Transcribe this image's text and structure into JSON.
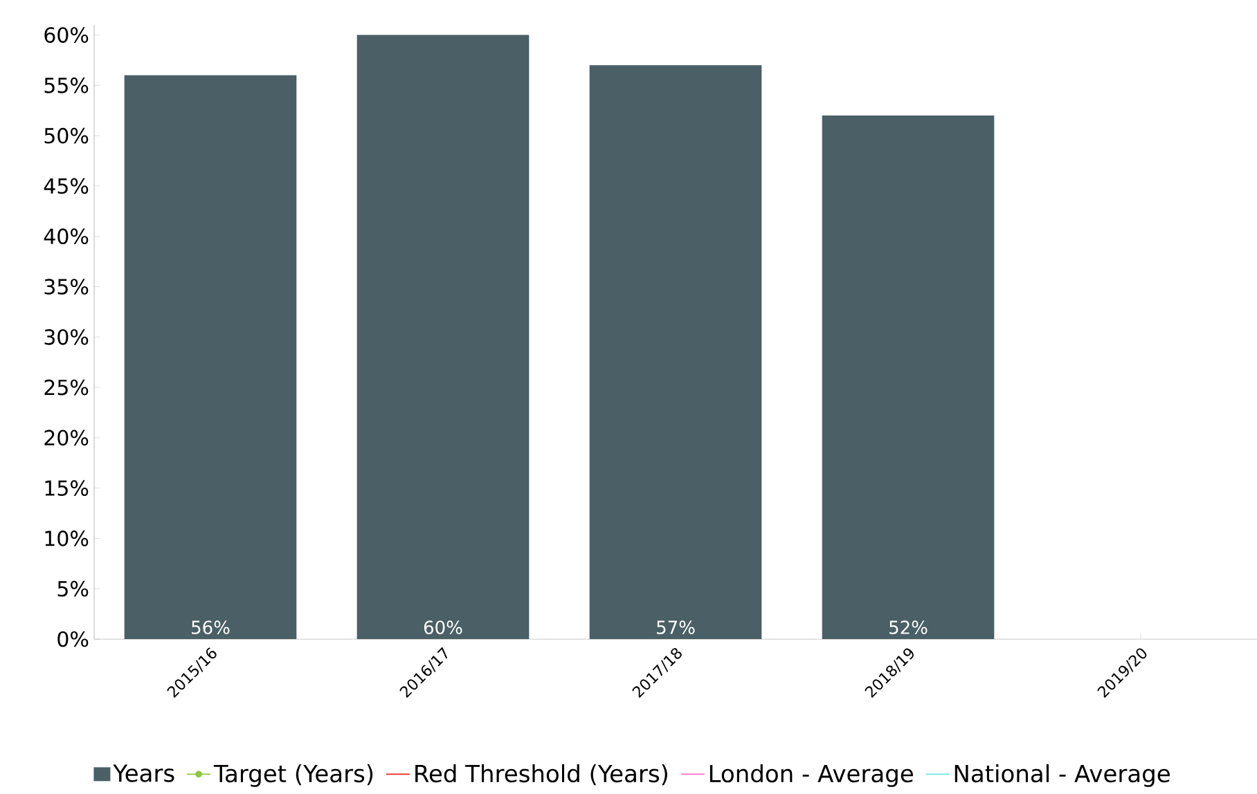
{
  "chart_data": {
    "type": "bar",
    "categories": [
      "2015/16",
      "2016/17",
      "2017/18",
      "2018/19",
      "2019/20"
    ],
    "series": [
      {
        "name": "Years",
        "color": "#4a5f66",
        "values": [
          56,
          60,
          57,
          52,
          null
        ],
        "value_labels": [
          "56%",
          "60%",
          "57%",
          "52%",
          null
        ]
      },
      {
        "name": "Target (Years)",
        "type": "line",
        "color": "#8dc63f",
        "marker": "circle",
        "values": [
          null,
          null,
          null,
          null,
          null
        ]
      },
      {
        "name": "Red Threshold (Years)",
        "type": "line",
        "color": "#e8251f",
        "values": [
          null,
          null,
          null,
          null,
          null
        ]
      },
      {
        "name": "London - Average",
        "type": "line",
        "color": "#ff6ec7",
        "values": [
          null,
          null,
          null,
          null,
          null
        ]
      },
      {
        "name": "National - Average",
        "type": "line",
        "color": "#6ee8d8",
        "values": [
          null,
          null,
          null,
          null,
          null
        ]
      }
    ],
    "ylim": [
      0,
      61
    ],
    "yticks": [
      {
        "value": 0,
        "label": "0%"
      },
      {
        "value": 5,
        "label": "5%"
      },
      {
        "value": 10,
        "label": "10%"
      },
      {
        "value": 15,
        "label": "15%"
      },
      {
        "value": 20,
        "label": "20%"
      },
      {
        "value": 25,
        "label": "25%"
      },
      {
        "value": 30,
        "label": "30%"
      },
      {
        "value": 35,
        "label": "35%"
      },
      {
        "value": 40,
        "label": "40%"
      },
      {
        "value": 45,
        "label": "45%"
      },
      {
        "value": 50,
        "label": "50%"
      },
      {
        "value": 55,
        "label": "55%"
      },
      {
        "value": 60,
        "label": "60%"
      }
    ],
    "legend": "bottom"
  }
}
